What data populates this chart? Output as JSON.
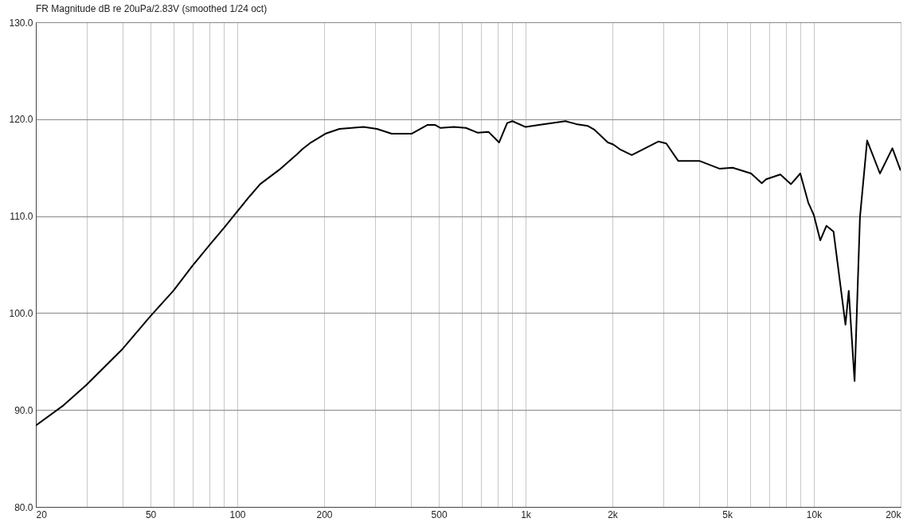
{
  "chart_data": {
    "type": "line",
    "title": "FR Magnitude dB re 20uPa/2.83V (smoothed 1/24 oct)",
    "log": "x",
    "grid": true,
    "marker": "none",
    "line_style": "solid",
    "xlim": [
      20,
      20000
    ],
    "xticks": [
      {
        "value": 20,
        "label": "20"
      },
      {
        "value": 30,
        "label": null
      },
      {
        "value": 40,
        "label": null
      },
      {
        "value": 50,
        "label": "50"
      },
      {
        "value": 60,
        "label": null
      },
      {
        "value": 70,
        "label": null
      },
      {
        "value": 80,
        "label": null
      },
      {
        "value": 90,
        "label": null
      },
      {
        "value": 100,
        "label": "100"
      },
      {
        "value": 200,
        "label": "200"
      },
      {
        "value": 300,
        "label": null
      },
      {
        "value": 400,
        "label": null
      },
      {
        "value": 500,
        "label": "500"
      },
      {
        "value": 600,
        "label": null
      },
      {
        "value": 700,
        "label": null
      },
      {
        "value": 800,
        "label": null
      },
      {
        "value": 900,
        "label": null
      },
      {
        "value": 1000,
        "label": "1k"
      },
      {
        "value": 2000,
        "label": "2k"
      },
      {
        "value": 3000,
        "label": null
      },
      {
        "value": 4000,
        "label": null
      },
      {
        "value": 5000,
        "label": "5k"
      },
      {
        "value": 6000,
        "label": null
      },
      {
        "value": 7000,
        "label": null
      },
      {
        "value": 8000,
        "label": null
      },
      {
        "value": 9000,
        "label": null
      },
      {
        "value": 10000,
        "label": "10k"
      },
      {
        "value": 20000,
        "label": "20k"
      }
    ],
    "ylim": [
      80,
      130
    ],
    "yticks": [
      {
        "value": 80,
        "label": "80.0"
      },
      {
        "value": 90,
        "label": "90.0"
      },
      {
        "value": 100,
        "label": "100.0"
      },
      {
        "value": 110,
        "label": "110.0"
      },
      {
        "value": 120,
        "label": "120.0"
      },
      {
        "value": 130,
        "label": "130.0"
      }
    ],
    "series": [
      {
        "color": "#000000",
        "x": [
          20,
          25,
          30,
          40,
          50,
          60,
          70,
          80,
          90,
          100,
          110,
          120,
          140,
          160,
          168,
          180,
          202,
          226,
          274,
          305,
          343,
          402,
          456,
          486,
          507,
          564,
          621,
          683,
          743,
          809,
          863,
          900,
          1000,
          1112,
          1375,
          1497,
          1646,
          1735,
          1929,
          2013,
          2123,
          2335,
          2886,
          3075,
          3383,
          4006,
          4700,
          5226,
          6057,
          6595,
          6830,
          7650,
          8330,
          8970,
          9560,
          10000,
          10520,
          11050,
          11700,
          12870,
          13210,
          13840,
          14450,
          15300,
          16950,
          18720,
          20000
        ],
        "values": [
          88.4,
          90.5,
          92.6,
          96.3,
          99.7,
          102.3,
          104.9,
          107.0,
          108.8,
          110.5,
          112.0,
          113.3,
          114.8,
          116.3,
          116.9,
          117.6,
          118.5,
          119.0,
          119.2,
          119.0,
          118.5,
          118.5,
          119.4,
          119.4,
          119.1,
          119.2,
          119.1,
          118.6,
          118.7,
          117.6,
          119.6,
          119.8,
          119.2,
          119.4,
          119.8,
          119.5,
          119.3,
          118.9,
          117.6,
          117.4,
          116.9,
          116.3,
          117.7,
          117.5,
          115.7,
          115.7,
          114.9,
          115.0,
          114.4,
          113.4,
          113.8,
          114.3,
          113.3,
          114.4,
          111.4,
          110.1,
          107.5,
          109.0,
          108.4,
          98.8,
          102.3,
          93.0,
          109.9,
          117.8,
          114.4,
          117.0,
          114.7
        ]
      }
    ]
  }
}
